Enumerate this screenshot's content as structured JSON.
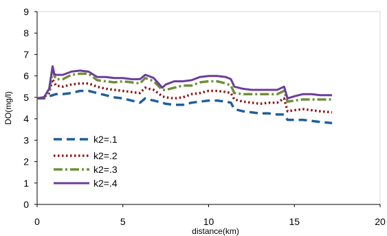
{
  "chart_data": {
    "type": "line",
    "title": "",
    "xlabel": "distance(km)",
    "ylabel": "DO(mg/l)",
    "xlim": [
      0,
      20
    ],
    "ylim": [
      0,
      9
    ],
    "xticks": [
      "0",
      "5",
      "10",
      "15",
      "20"
    ],
    "yticks": [
      "0",
      "1",
      "2",
      "3",
      "4",
      "5",
      "6",
      "7",
      "8",
      "9"
    ],
    "grid": false,
    "legend_position": "left",
    "series": [
      {
        "name": "k2=.1",
        "color": "#1f5f99",
        "dash": "dashed",
        "x": [
          0,
          0.4,
          0.7,
          0.9,
          1.1,
          1.5,
          2.0,
          2.5,
          3.0,
          3.5,
          4.0,
          4.5,
          5.0,
          5.5,
          6.0,
          6.3,
          6.5,
          6.8,
          7.3,
          7.5,
          8.0,
          8.5,
          9.0,
          9.5,
          10.0,
          10.5,
          11.0,
          11.3,
          11.5,
          12.0,
          12.5,
          13.0,
          13.5,
          14.0,
          14.4,
          14.6,
          15.0,
          15.5,
          16.0,
          16.5,
          17.2
        ],
        "y": [
          4.95,
          4.95,
          5.05,
          5.1,
          5.15,
          5.15,
          5.2,
          5.3,
          5.3,
          5.2,
          5.1,
          5.0,
          4.95,
          4.85,
          4.75,
          4.95,
          4.9,
          4.85,
          4.75,
          4.7,
          4.65,
          4.65,
          4.75,
          4.8,
          4.85,
          4.85,
          4.8,
          4.75,
          4.45,
          4.35,
          4.3,
          4.25,
          4.25,
          4.2,
          4.2,
          3.95,
          3.95,
          3.95,
          3.9,
          3.85,
          3.8
        ]
      },
      {
        "name": "k2=.2",
        "color": "#8b1a1a",
        "dash": "dotted",
        "x": [
          0,
          0.4,
          0.7,
          0.9,
          1.1,
          1.5,
          2.0,
          2.5,
          3.0,
          3.5,
          4.0,
          4.5,
          5.0,
          5.5,
          6.0,
          6.3,
          6.5,
          6.8,
          7.3,
          7.5,
          8.0,
          8.5,
          9.0,
          9.5,
          10.0,
          10.5,
          11.0,
          11.3,
          11.5,
          12.0,
          12.5,
          13.0,
          13.5,
          14.0,
          14.4,
          14.6,
          15.0,
          15.5,
          16.0,
          16.5,
          17.2
        ],
        "y": [
          4.95,
          5.0,
          5.2,
          5.85,
          5.55,
          5.5,
          5.6,
          5.65,
          5.65,
          5.5,
          5.4,
          5.35,
          5.3,
          5.25,
          5.2,
          5.45,
          5.4,
          5.35,
          5.05,
          5.0,
          4.95,
          5.0,
          5.15,
          5.2,
          5.3,
          5.3,
          5.25,
          5.2,
          4.9,
          4.8,
          4.75,
          4.7,
          4.75,
          4.75,
          4.95,
          4.35,
          4.4,
          4.45,
          4.4,
          4.35,
          4.3
        ]
      },
      {
        "name": "k2=.3",
        "color": "#6f8f3a",
        "dash": "dashdot",
        "x": [
          0,
          0.4,
          0.7,
          0.9,
          1.1,
          1.5,
          2.0,
          2.5,
          3.0,
          3.5,
          4.0,
          4.5,
          5.0,
          5.5,
          6.0,
          6.3,
          6.5,
          6.8,
          7.3,
          7.5,
          8.0,
          8.5,
          9.0,
          9.5,
          10.0,
          10.5,
          11.0,
          11.3,
          11.5,
          12.0,
          12.5,
          13.0,
          13.5,
          14.0,
          14.4,
          14.6,
          15.0,
          15.5,
          16.0,
          16.5,
          17.2
        ],
        "y": [
          4.95,
          5.0,
          5.3,
          6.2,
          5.85,
          5.85,
          6.05,
          6.1,
          6.1,
          5.8,
          5.75,
          5.7,
          5.75,
          5.7,
          5.65,
          5.9,
          5.85,
          5.75,
          5.35,
          5.35,
          5.45,
          5.55,
          5.55,
          5.7,
          5.75,
          5.75,
          5.65,
          5.55,
          5.2,
          5.15,
          5.15,
          5.15,
          5.15,
          5.15,
          5.3,
          4.8,
          4.85,
          4.9,
          4.9,
          4.9,
          4.9
        ]
      },
      {
        "name": "k2=.4",
        "color": "#6a3d9a",
        "dash": "solid",
        "x": [
          0,
          0.4,
          0.7,
          0.9,
          1.0,
          1.1,
          1.5,
          2.0,
          2.5,
          3.0,
          3.5,
          4.0,
          4.5,
          5.0,
          5.5,
          6.0,
          6.3,
          6.5,
          6.8,
          7.3,
          7.5,
          8.0,
          8.5,
          9.0,
          9.5,
          10.0,
          10.5,
          11.0,
          11.3,
          11.5,
          12.0,
          12.5,
          13.0,
          13.5,
          14.0,
          14.4,
          14.6,
          15.0,
          15.5,
          16.0,
          16.5,
          17.2
        ],
        "y": [
          4.95,
          5.0,
          5.4,
          6.45,
          6.1,
          6.05,
          6.05,
          6.2,
          6.25,
          6.2,
          5.95,
          5.95,
          5.9,
          5.9,
          5.85,
          5.85,
          6.05,
          6.0,
          5.9,
          5.45,
          5.6,
          5.75,
          5.75,
          5.8,
          5.95,
          6.0,
          6.0,
          5.95,
          5.85,
          5.5,
          5.4,
          5.35,
          5.35,
          5.35,
          5.35,
          5.5,
          4.95,
          5.05,
          5.15,
          5.15,
          5.1,
          5.1
        ]
      }
    ]
  }
}
